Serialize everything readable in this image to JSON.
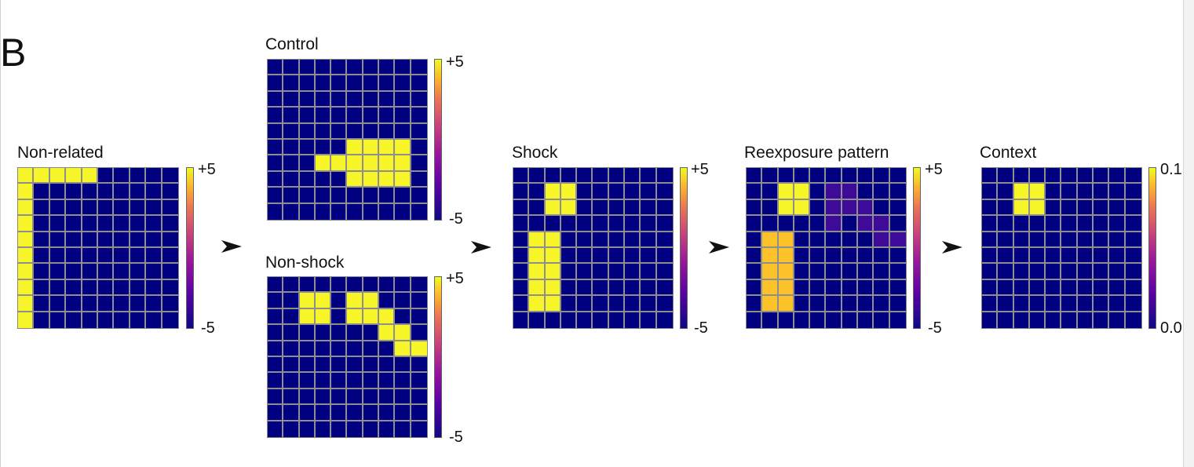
{
  "panel_letter": "B",
  "colors": {
    "background": "#000080",
    "yellow": "#f5f52a",
    "orange": "#fdc12a",
    "purple": "#3d0a99",
    "gridline": "#8e8e8e"
  },
  "icons": {
    "arrow": "arrowhead-right-icon"
  },
  "panels": [
    {
      "id": "non-related",
      "title": "Non-related",
      "colorbar": {
        "top_label": "+5",
        "bottom_label": "-5"
      },
      "cells": [
        {
          "r": 0,
          "c": 0,
          "color": "yellow"
        },
        {
          "r": 0,
          "c": 1,
          "color": "yellow"
        },
        {
          "r": 0,
          "c": 2,
          "color": "yellow"
        },
        {
          "r": 0,
          "c": 3,
          "color": "yellow"
        },
        {
          "r": 0,
          "c": 4,
          "color": "yellow"
        },
        {
          "r": 1,
          "c": 0,
          "color": "yellow"
        },
        {
          "r": 2,
          "c": 0,
          "color": "yellow"
        },
        {
          "r": 3,
          "c": 0,
          "color": "yellow"
        },
        {
          "r": 4,
          "c": 0,
          "color": "yellow"
        },
        {
          "r": 5,
          "c": 0,
          "color": "yellow"
        },
        {
          "r": 6,
          "c": 0,
          "color": "yellow"
        },
        {
          "r": 7,
          "c": 0,
          "color": "yellow"
        },
        {
          "r": 8,
          "c": 0,
          "color": "yellow"
        },
        {
          "r": 9,
          "c": 0,
          "color": "yellow"
        }
      ]
    },
    {
      "id": "control",
      "title": "Control",
      "colorbar": {
        "top_label": "+5",
        "bottom_label": "-5"
      },
      "cells": [
        {
          "r": 6,
          "c": 3,
          "color": "yellow"
        },
        {
          "r": 6,
          "c": 4,
          "color": "yellow"
        },
        {
          "r": 6,
          "c": 5,
          "color": "yellow"
        },
        {
          "r": 6,
          "c": 6,
          "color": "yellow"
        },
        {
          "r": 6,
          "c": 7,
          "color": "yellow"
        },
        {
          "r": 6,
          "c": 8,
          "color": "yellow"
        },
        {
          "r": 5,
          "c": 5,
          "color": "yellow"
        },
        {
          "r": 5,
          "c": 6,
          "color": "yellow"
        },
        {
          "r": 5,
          "c": 7,
          "color": "yellow"
        },
        {
          "r": 5,
          "c": 8,
          "color": "yellow"
        },
        {
          "r": 7,
          "c": 5,
          "color": "yellow"
        },
        {
          "r": 7,
          "c": 6,
          "color": "yellow"
        },
        {
          "r": 7,
          "c": 7,
          "color": "yellow"
        },
        {
          "r": 7,
          "c": 8,
          "color": "yellow"
        }
      ]
    },
    {
      "id": "non-shock",
      "title": "Non-shock",
      "colorbar": {
        "top_label": "+5",
        "bottom_label": "-5"
      },
      "cells": [
        {
          "r": 1,
          "c": 2,
          "color": "yellow"
        },
        {
          "r": 1,
          "c": 3,
          "color": "yellow"
        },
        {
          "r": 2,
          "c": 2,
          "color": "yellow"
        },
        {
          "r": 2,
          "c": 3,
          "color": "yellow"
        },
        {
          "r": 1,
          "c": 5,
          "color": "yellow"
        },
        {
          "r": 1,
          "c": 6,
          "color": "yellow"
        },
        {
          "r": 2,
          "c": 5,
          "color": "yellow"
        },
        {
          "r": 2,
          "c": 6,
          "color": "yellow"
        },
        {
          "r": 2,
          "c": 7,
          "color": "yellow"
        },
        {
          "r": 3,
          "c": 7,
          "color": "yellow"
        },
        {
          "r": 3,
          "c": 8,
          "color": "yellow"
        },
        {
          "r": 4,
          "c": 8,
          "color": "yellow"
        },
        {
          "r": 4,
          "c": 9,
          "color": "yellow"
        }
      ]
    },
    {
      "id": "shock",
      "title": "Shock",
      "colorbar": {
        "top_label": "+5",
        "bottom_label": "-5"
      },
      "cells": [
        {
          "r": 1,
          "c": 2,
          "color": "yellow"
        },
        {
          "r": 1,
          "c": 3,
          "color": "yellow"
        },
        {
          "r": 2,
          "c": 2,
          "color": "yellow"
        },
        {
          "r": 2,
          "c": 3,
          "color": "yellow"
        },
        {
          "r": 4,
          "c": 1,
          "color": "yellow"
        },
        {
          "r": 4,
          "c": 2,
          "color": "yellow"
        },
        {
          "r": 5,
          "c": 1,
          "color": "yellow"
        },
        {
          "r": 5,
          "c": 2,
          "color": "yellow"
        },
        {
          "r": 6,
          "c": 1,
          "color": "yellow"
        },
        {
          "r": 6,
          "c": 2,
          "color": "yellow"
        },
        {
          "r": 7,
          "c": 1,
          "color": "yellow"
        },
        {
          "r": 7,
          "c": 2,
          "color": "yellow"
        },
        {
          "r": 8,
          "c": 1,
          "color": "yellow"
        },
        {
          "r": 8,
          "c": 2,
          "color": "yellow"
        }
      ]
    },
    {
      "id": "reexposure",
      "title": "Reexposure pattern",
      "colorbar": {
        "top_label": "+5",
        "bottom_label": "-5"
      },
      "cells": [
        {
          "r": 1,
          "c": 2,
          "color": "yellow"
        },
        {
          "r": 1,
          "c": 3,
          "color": "yellow"
        },
        {
          "r": 2,
          "c": 2,
          "color": "yellow"
        },
        {
          "r": 2,
          "c": 3,
          "color": "yellow"
        },
        {
          "r": 4,
          "c": 1,
          "color": "orange"
        },
        {
          "r": 4,
          "c": 2,
          "color": "orange"
        },
        {
          "r": 5,
          "c": 1,
          "color": "orange"
        },
        {
          "r": 5,
          "c": 2,
          "color": "orange"
        },
        {
          "r": 6,
          "c": 1,
          "color": "orange"
        },
        {
          "r": 6,
          "c": 2,
          "color": "orange"
        },
        {
          "r": 7,
          "c": 1,
          "color": "orange"
        },
        {
          "r": 7,
          "c": 2,
          "color": "orange"
        },
        {
          "r": 8,
          "c": 1,
          "color": "orange"
        },
        {
          "r": 8,
          "c": 2,
          "color": "orange"
        },
        {
          "r": 1,
          "c": 5,
          "color": "purple"
        },
        {
          "r": 1,
          "c": 6,
          "color": "purple"
        },
        {
          "r": 2,
          "c": 5,
          "color": "purple"
        },
        {
          "r": 2,
          "c": 6,
          "color": "purple"
        },
        {
          "r": 2,
          "c": 7,
          "color": "purple"
        },
        {
          "r": 3,
          "c": 5,
          "color": "purple"
        },
        {
          "r": 3,
          "c": 7,
          "color": "purple"
        },
        {
          "r": 3,
          "c": 8,
          "color": "purple"
        },
        {
          "r": 4,
          "c": 8,
          "color": "purple"
        },
        {
          "r": 4,
          "c": 9,
          "color": "purple"
        }
      ]
    },
    {
      "id": "context",
      "title": "Context",
      "colorbar": {
        "top_label": "0.1",
        "bottom_label": "0.0"
      },
      "cells": [
        {
          "r": 1,
          "c": 2,
          "color": "yellow"
        },
        {
          "r": 1,
          "c": 3,
          "color": "yellow"
        },
        {
          "r": 2,
          "c": 2,
          "color": "yellow"
        },
        {
          "r": 2,
          "c": 3,
          "color": "yellow"
        }
      ]
    }
  ]
}
